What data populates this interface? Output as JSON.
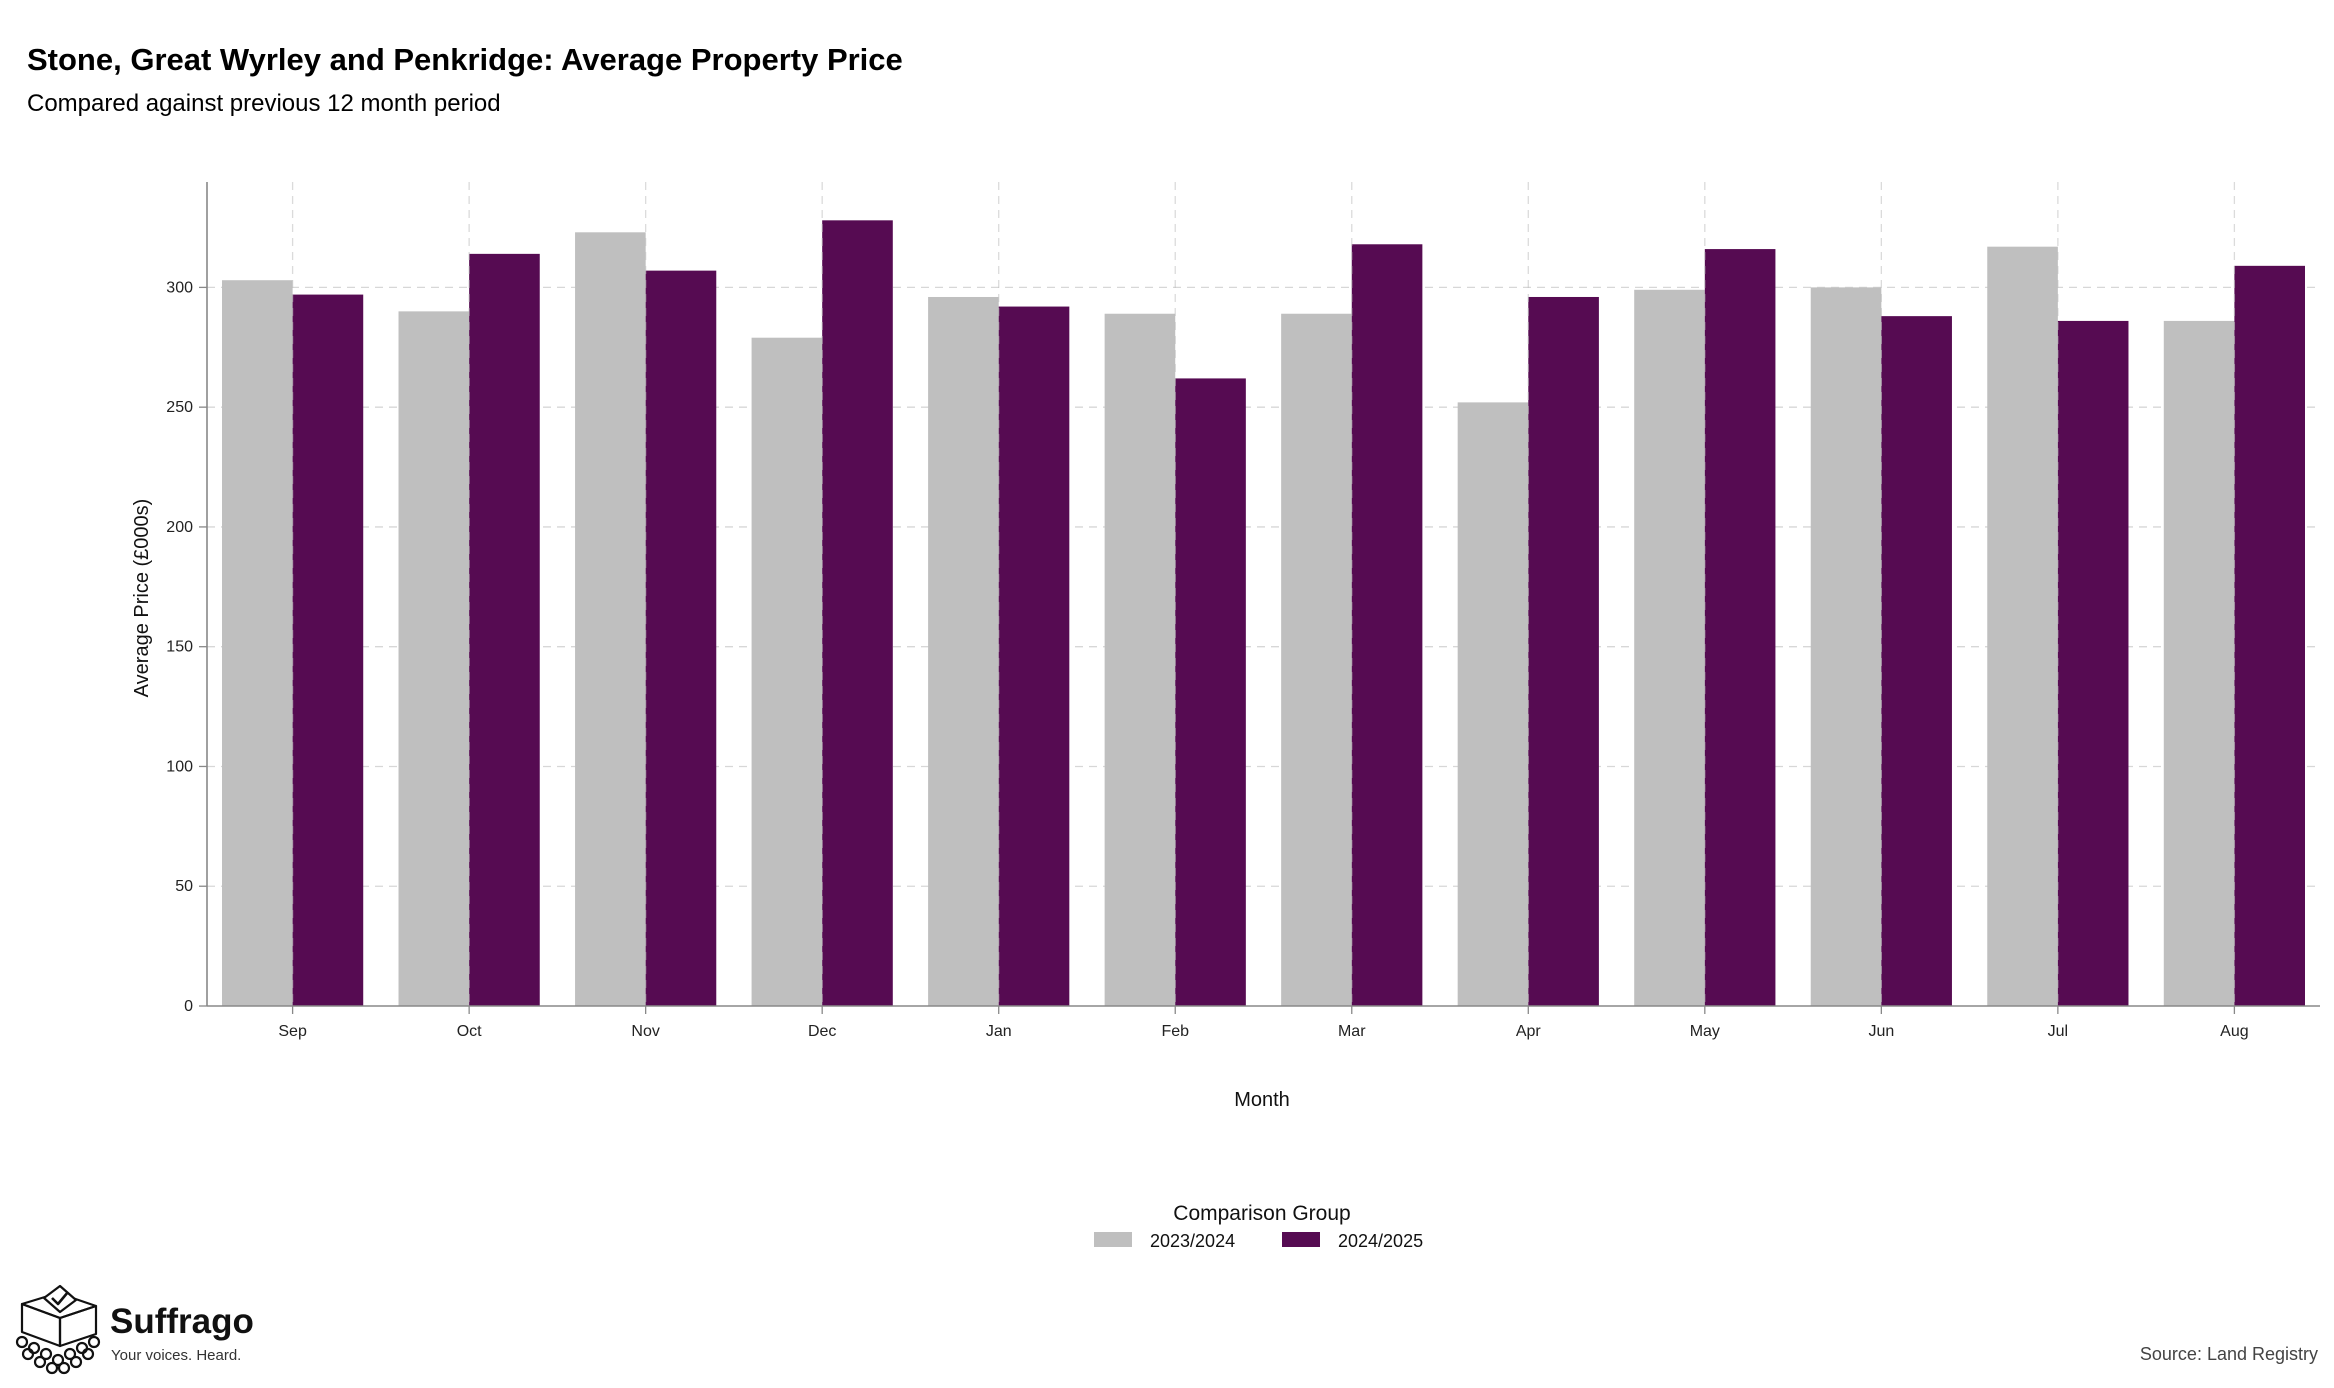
{
  "header": {
    "title": "Stone, Great Wyrley and Penkridge: Average Property Price",
    "subtitle": "Compared against previous 12 month period"
  },
  "chart_data": {
    "type": "bar",
    "title": "Stone, Great Wyrley and Penkridge: Average Property Price",
    "subtitle": "Compared against previous 12 month period",
    "xlabel": "Month",
    "ylabel": "Average Price (£000s)",
    "categories": [
      "Sep",
      "Oct",
      "Nov",
      "Dec",
      "Jan",
      "Feb",
      "Mar",
      "Apr",
      "May",
      "Jun",
      "Jul",
      "Aug"
    ],
    "series": [
      {
        "name": "2023/2024",
        "color": "#bfbfbf",
        "values": [
          303,
          290,
          323,
          279,
          296,
          289,
          289,
          252,
          299,
          300,
          317,
          286
        ]
      },
      {
        "name": "2024/2025",
        "color": "#560b52",
        "values": [
          297,
          314,
          307,
          328,
          292,
          262,
          318,
          296,
          316,
          288,
          286,
          309
        ]
      }
    ],
    "ylim": [
      0,
      344
    ],
    "yticks": [
      0,
      50,
      100,
      150,
      200,
      250,
      300
    ],
    "grid": true,
    "legend": {
      "title": "Comparison Group",
      "position": "bottom"
    }
  },
  "logo": {
    "name": "Suffrago",
    "tagline": "Your voices. Heard.",
    "icon": "ballot-box-icon"
  },
  "footer": {
    "source": "Source: Land Registry"
  }
}
